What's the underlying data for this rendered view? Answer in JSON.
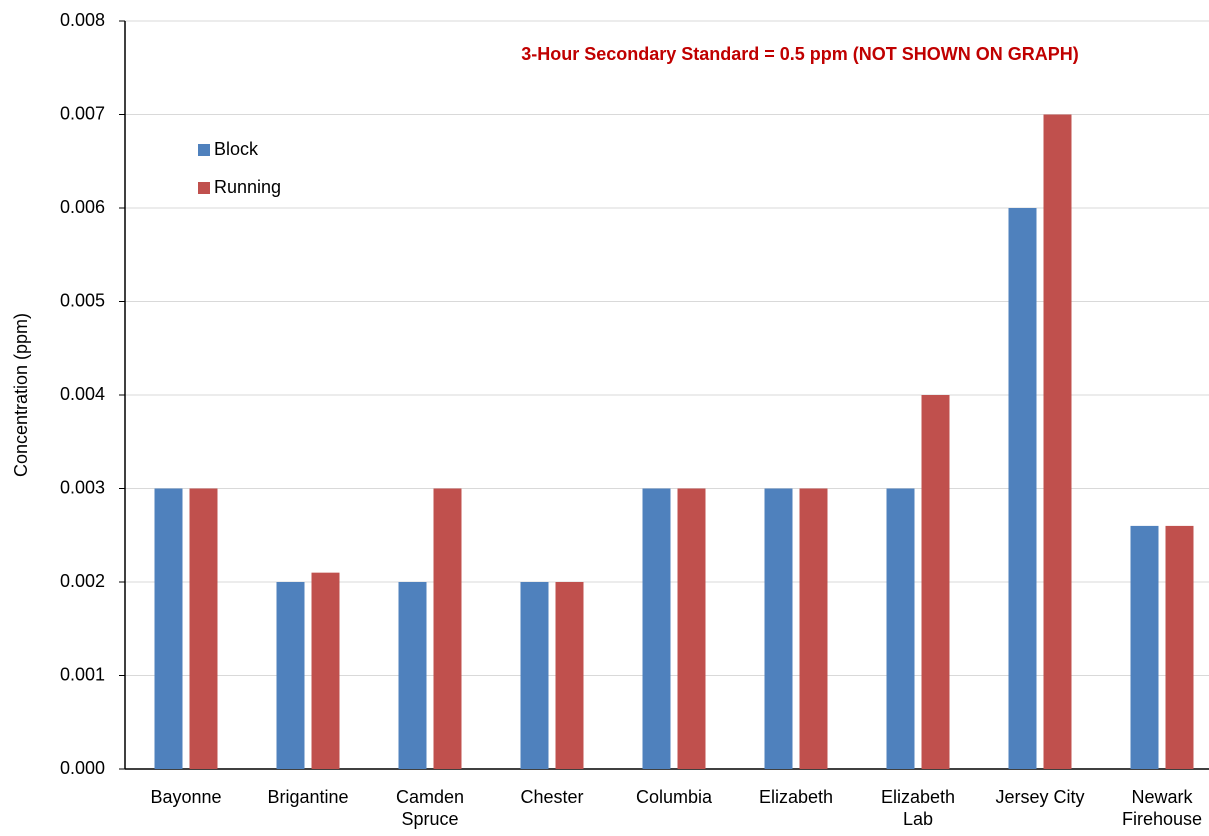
{
  "chart_data": {
    "type": "bar",
    "annotation": "3-Hour Secondary Standard = 0.5 ppm  (NOT SHOWN ON GRAPH)",
    "y_label": "Concentration (ppm)",
    "categories": [
      "Bayonne",
      "Brigantine",
      "Camden\nSpruce",
      "Chester",
      "Columbia",
      "Elizabeth",
      "Elizabeth\nLab",
      "Jersey City",
      "Newark\nFirehouse"
    ],
    "series": [
      {
        "name": "Block",
        "color": "#4f81bd",
        "values": [
          0.003,
          0.002,
          0.002,
          0.002,
          0.003,
          0.003,
          0.003,
          0.006,
          0.0026
        ]
      },
      {
        "name": "Running",
        "color": "#c0504d",
        "values": [
          0.003,
          0.0021,
          0.003,
          0.002,
          0.003,
          0.003,
          0.004,
          0.007,
          0.0026
        ]
      }
    ],
    "ylim": [
      0,
      0.008
    ],
    "yticks": [
      {
        "value": 0,
        "label": "0.000"
      },
      {
        "value": 0.001,
        "label": "0.001"
      },
      {
        "value": 0.002,
        "label": "0.002"
      },
      {
        "value": 0.003,
        "label": "0.003"
      },
      {
        "value": 0.004,
        "label": "0.004"
      },
      {
        "value": 0.005,
        "label": "0.005"
      },
      {
        "value": 0.006,
        "label": "0.006"
      },
      {
        "value": 0.007,
        "label": "0.007"
      },
      {
        "value": 0.008,
        "label": "0.008"
      }
    ],
    "grid": true,
    "legend": "top-left"
  }
}
